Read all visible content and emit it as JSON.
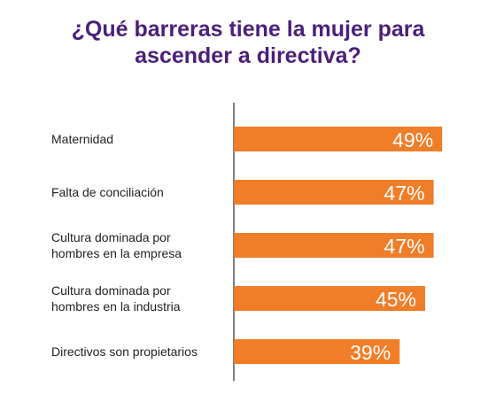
{
  "title_lines": [
    "¿Qué barreras tiene la mujer para",
    "ascender a directiva?"
  ],
  "colors": {
    "bar": "#f07d28",
    "title": "#4b1f7a",
    "axis": "#555555",
    "label": "#222222",
    "value_label": "#ffffff"
  },
  "chart_data": {
    "type": "bar",
    "orientation": "horizontal",
    "categories": [
      [
        "Maternidad"
      ],
      [
        "Falta de conciliación"
      ],
      [
        "Cultura dominada por",
        "hombres en la empresa"
      ],
      [
        "Cultura dominada por",
        "hombres en la industria"
      ],
      [
        "Directivos son propietarios"
      ]
    ],
    "values": [
      49,
      47,
      47,
      45,
      39
    ],
    "value_labels": [
      "49%",
      "47%",
      "47%",
      "45%",
      "39%"
    ],
    "xlim": [
      0,
      50
    ],
    "grid": false,
    "legend": "none"
  }
}
